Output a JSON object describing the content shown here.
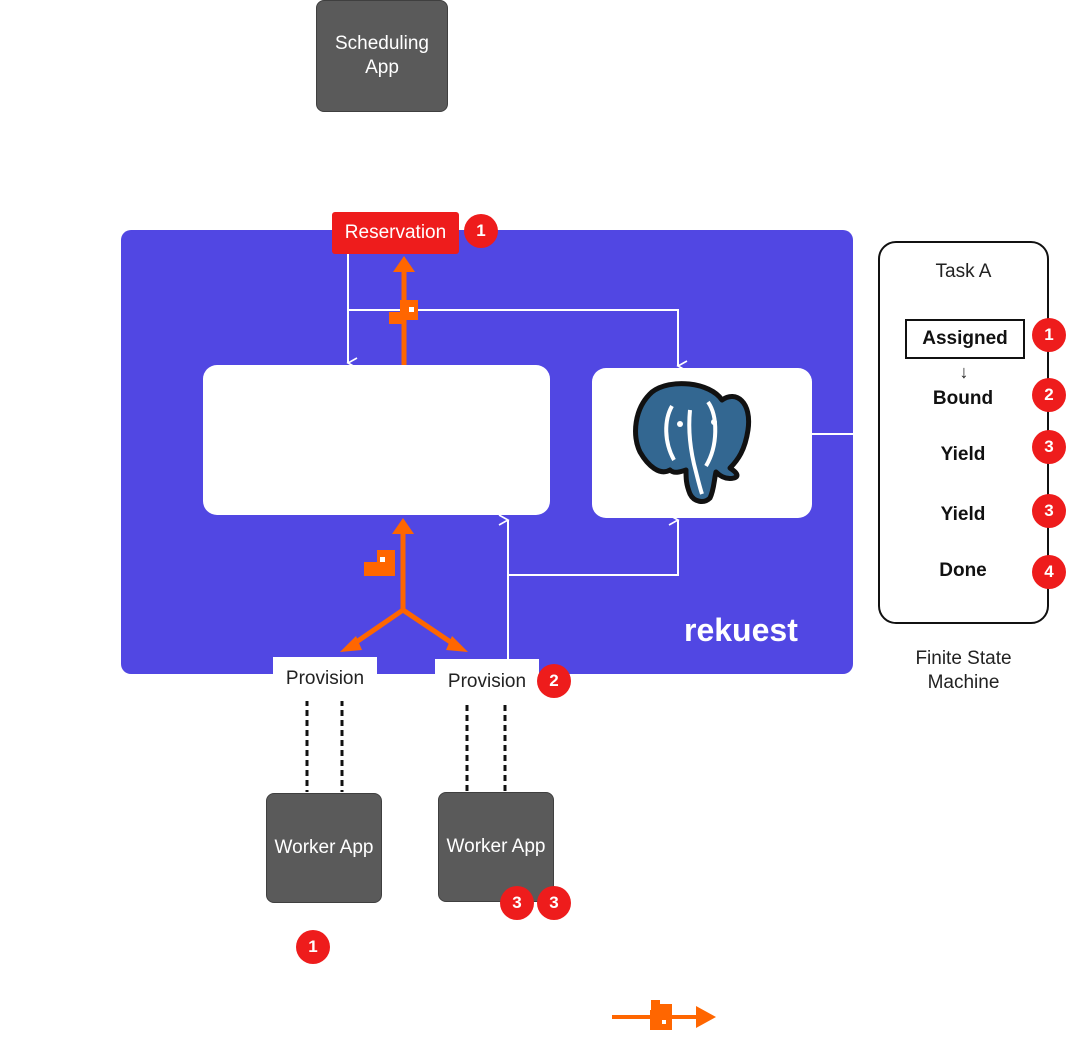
{
  "scheduling_app": {
    "label_line1": "Scheduling",
    "label_line2": "App"
  },
  "reservation": {
    "label": "Reservation",
    "badge": "1"
  },
  "brand": {
    "name": "rekuest"
  },
  "provisions": [
    {
      "label": "Provision"
    },
    {
      "label": "Provision",
      "badge": "2"
    }
  ],
  "workers": [
    {
      "label": "Worker App"
    },
    {
      "label": "Worker App",
      "badges": [
        "3",
        "3"
      ]
    }
  ],
  "worker_badge": "1",
  "fsm": {
    "title": "Task A",
    "states": [
      {
        "label": "Assigned",
        "badge": "1"
      },
      {
        "label": "Bound",
        "badge": "2"
      },
      {
        "label": "Yield",
        "badge": "3"
      },
      {
        "label": "Yield",
        "badge": "3"
      },
      {
        "label": "Done",
        "badge": "4"
      }
    ],
    "arrow": "↓",
    "caption_line1": "Finite State",
    "caption_line2": "Machine"
  },
  "colors": {
    "panel": "#5147e3",
    "badge": "#ee1c1c",
    "orange": "#ff6600",
    "app": "#5a5a5a",
    "postgres": "#336791"
  }
}
